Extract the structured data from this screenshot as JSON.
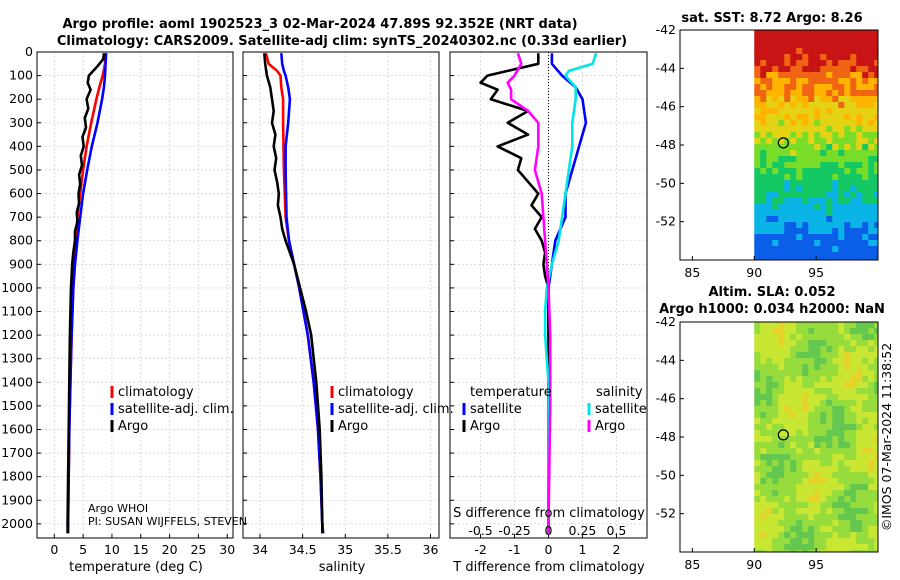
{
  "figure": {
    "title_line1": "Argo profile: aoml 1902523_3 02-Mar-2024 47.89S 92.352E (NRT data)",
    "title_line2": "Climatology: CARS2009. Satellite-adj clim: synTS_20240302.nc (0.33d earlier)",
    "timestamp": "©IMOS 07-Mar-2024 11:38:52"
  },
  "colors": {
    "climatology": "#ff0000",
    "satellite": "#0000ff",
    "argo": "#000000",
    "satellite_salinity": "#00e5e5",
    "argo_salinity": "#ff00ff",
    "grid": "#c8c8c8"
  },
  "chart_data": [
    {
      "type": "line",
      "panel": "temperature",
      "xlabel": "temperature (deg C)",
      "xlim": [
        -3,
        31
      ],
      "ylim": [
        2060,
        0
      ],
      "xticks": [
        0,
        5,
        10,
        15,
        20,
        25,
        30
      ],
      "yticks": [
        0,
        100,
        200,
        300,
        400,
        500,
        600,
        700,
        800,
        900,
        1000,
        1100,
        1200,
        1300,
        1400,
        1500,
        1600,
        1700,
        1800,
        1900,
        2000
      ],
      "legend": [
        "climatology",
        "satellite-adj. clim.",
        "Argo"
      ],
      "note_line1": "Argo WHOI",
      "note_line2": "PI: SUSAN WIJFFELS, STEVEN",
      "series": [
        {
          "name": "climatology",
          "color": "#ff0000",
          "depth": [
            5,
            50,
            100,
            150,
            200,
            300,
            400,
            500,
            600,
            700,
            800,
            900,
            1000,
            1200,
            1400,
            1600,
            1800,
            2000,
            2040
          ],
          "values": [
            8.9,
            8.8,
            8.4,
            7.8,
            7.3,
            6.4,
            5.6,
            5.0,
            4.5,
            4.0,
            3.8,
            3.5,
            3.3,
            3.0,
            2.8,
            2.6,
            2.5,
            2.4,
            2.4
          ]
        },
        {
          "name": "satellite-adj. clim.",
          "color": "#0000ff",
          "depth": [
            5,
            50,
            100,
            150,
            200,
            300,
            400,
            500,
            600,
            700,
            800,
            900,
            1000,
            1200,
            1400,
            1600,
            1800,
            2000,
            2040
          ],
          "values": [
            9.0,
            8.9,
            8.8,
            8.6,
            8.3,
            7.5,
            6.5,
            5.7,
            5.0,
            4.5,
            4.0,
            3.6,
            3.3,
            3.0,
            2.8,
            2.6,
            2.5,
            2.4,
            2.4
          ]
        },
        {
          "name": "Argo",
          "color": "#000000",
          "depth": [
            5,
            30,
            60,
            100,
            130,
            160,
            200,
            240,
            280,
            320,
            360,
            400,
            440,
            480,
            520,
            560,
            600,
            640,
            680,
            720,
            760,
            800,
            850,
            900,
            1000,
            1200,
            1400,
            1600,
            1800,
            2000,
            2040
          ],
          "values": [
            8.6,
            8.5,
            7.5,
            6.0,
            5.8,
            6.3,
            5.6,
            5.9,
            5.3,
            5.5,
            4.9,
            5.1,
            4.6,
            4.8,
            4.3,
            4.5,
            4.2,
            4.3,
            3.9,
            4.0,
            3.6,
            3.6,
            3.3,
            3.1,
            2.9,
            2.7,
            2.6,
            2.5,
            2.4,
            2.3,
            2.3
          ]
        }
      ]
    },
    {
      "type": "line",
      "panel": "salinity",
      "xlabel": "salinity",
      "xlim": [
        33.8,
        36.1
      ],
      "ylim": [
        2060,
        0
      ],
      "xticks": [
        34,
        34.5,
        35,
        35.5,
        36
      ],
      "legend": [
        "climatology",
        "satellite-adj. clim.",
        "Argo"
      ],
      "series": [
        {
          "name": "climatology",
          "color": "#ff0000",
          "depth": [
            5,
            50,
            80,
            100,
            150,
            200,
            300,
            500,
            700,
            800,
            900,
            1000,
            1200,
            1400,
            1600,
            1800,
            2000,
            2040
          ],
          "values": [
            34.07,
            34.1,
            34.2,
            34.24,
            34.25,
            34.27,
            34.27,
            34.28,
            34.3,
            34.34,
            34.4,
            34.46,
            34.56,
            34.63,
            34.68,
            34.71,
            34.73,
            34.74
          ]
        },
        {
          "name": "satellite-adj. clim.",
          "color": "#0000ff",
          "depth": [
            5,
            50,
            80,
            100,
            150,
            200,
            300,
            400,
            500,
            700,
            800,
            900,
            1000,
            1200,
            1400,
            1600,
            1800,
            2000,
            2040
          ],
          "values": [
            34.25,
            34.26,
            34.28,
            34.3,
            34.33,
            34.35,
            34.33,
            34.3,
            34.3,
            34.31,
            34.34,
            34.4,
            34.46,
            34.56,
            34.63,
            34.68,
            34.71,
            34.73,
            34.74
          ]
        },
        {
          "name": "Argo",
          "color": "#000000",
          "depth": [
            5,
            50,
            100,
            150,
            200,
            250,
            300,
            350,
            400,
            450,
            500,
            550,
            600,
            650,
            700,
            750,
            800,
            850,
            900,
            1000,
            1100,
            1200,
            1300,
            1400,
            1500,
            1600,
            1800,
            2000,
            2040
          ],
          "values": [
            34.05,
            34.06,
            34.08,
            34.12,
            34.14,
            34.16,
            34.14,
            34.18,
            34.16,
            34.19,
            34.17,
            34.2,
            34.22,
            34.21,
            34.24,
            34.26,
            34.3,
            34.35,
            34.4,
            34.47,
            34.54,
            34.6,
            34.63,
            34.66,
            34.68,
            34.7,
            34.72,
            34.73,
            34.73
          ]
        }
      ]
    },
    {
      "type": "line",
      "panel": "difference",
      "xlabel": "T difference from climatology",
      "x2label": "S difference from climatology",
      "xlim": [
        -2.9,
        2.9
      ],
      "ylim": [
        2060,
        0
      ],
      "xticks": [
        -2,
        -1,
        0,
        1,
        2
      ],
      "x2ticks": [
        "-0.5",
        "-0.25",
        "0",
        "0.25",
        "0.5"
      ],
      "x2tick_positions": [
        -2,
        -1,
        0,
        1,
        2
      ],
      "legend_header_left": "temperature",
      "legend_header_right": "salinity",
      "legend": [
        "satellite",
        "Argo",
        "satellite",
        "Argo"
      ],
      "series": [
        {
          "name": "temperature satellite",
          "color": "#0000ff",
          "depth": [
            5,
            50,
            100,
            150,
            200,
            300,
            400,
            500,
            600,
            700,
            800,
            900,
            1000,
            1200,
            1500,
            2000,
            2040
          ],
          "values": [
            0.1,
            0.1,
            0.4,
            0.8,
            1.0,
            1.1,
            0.9,
            0.7,
            0.5,
            0.5,
            0.2,
            0.1,
            0.0,
            0.0,
            0.0,
            0.0,
            0.0
          ]
        },
        {
          "name": "temperature Argo",
          "color": "#000000",
          "depth": [
            5,
            50,
            100,
            130,
            160,
            200,
            250,
            300,
            350,
            400,
            450,
            500,
            550,
            600,
            650,
            700,
            750,
            800,
            850,
            900,
            950,
            1000,
            1200,
            1500,
            2000,
            2040
          ],
          "values": [
            -0.3,
            -0.3,
            -1.8,
            -2.0,
            -1.5,
            -1.7,
            -0.6,
            -1.2,
            -0.6,
            -1.5,
            -0.8,
            -0.9,
            -0.6,
            -0.3,
            -0.5,
            -0.2,
            -0.4,
            -0.2,
            -0.1,
            -0.15,
            -0.1,
            0.0,
            0.0,
            0.0,
            0.0,
            0.0
          ]
        },
        {
          "name": "salinity satellite",
          "color": "#00e5e5",
          "depth": [
            5,
            50,
            80,
            100,
            150,
            200,
            300,
            400,
            500,
            600,
            700,
            800,
            900,
            1000,
            1100,
            1200,
            1300,
            1400,
            1500,
            2000,
            2040
          ],
          "values": [
            1.4,
            1.3,
            0.6,
            0.5,
            0.8,
            0.8,
            0.7,
            0.7,
            0.6,
            0.5,
            0.4,
            0.3,
            0.1,
            -0.05,
            -0.1,
            -0.1,
            -0.05,
            0.0,
            0.0,
            0.0,
            0.0
          ]
        },
        {
          "name": "salinity Argo",
          "color": "#ff00ff",
          "depth": [
            5,
            50,
            100,
            130,
            160,
            200,
            250,
            300,
            400,
            500,
            600,
            700,
            800,
            900,
            1000,
            1200,
            1500,
            2000,
            2040
          ],
          "values": [
            -0.9,
            -0.8,
            -1.0,
            -1.2,
            -1.1,
            -1.1,
            -0.6,
            -0.3,
            -0.3,
            -0.4,
            -0.2,
            -0.15,
            -0.1,
            -0.05,
            0.0,
            0.05,
            0.05,
            0.0,
            0.0
          ]
        }
      ]
    },
    {
      "type": "heatmap",
      "panel": "sst_map",
      "title": "sat. SST: 8.72 Argo: 8.26",
      "xlim": [
        84,
        100
      ],
      "ylim": [
        -54,
        -42
      ],
      "xticks": [
        85,
        90,
        95
      ],
      "yticks": [
        -52,
        -50,
        -48,
        -46,
        -44,
        -42
      ],
      "data_xlim": [
        90,
        100
      ],
      "profile_position": {
        "lon": 92.35,
        "lat": -47.89
      }
    },
    {
      "type": "heatmap",
      "panel": "sla_map",
      "title_line1": "Altim. SLA: 0.052",
      "title_line2": "Argo h1000: 0.034 h2000: NaN",
      "xlim": [
        84,
        100
      ],
      "ylim": [
        -54,
        -42
      ],
      "xticks": [
        85,
        90,
        95
      ],
      "yticks": [
        -52,
        -50,
        -48,
        -46,
        -44,
        -42
      ],
      "data_xlim": [
        90,
        100
      ],
      "profile_position": {
        "lon": 92.35,
        "lat": -47.89
      }
    }
  ]
}
